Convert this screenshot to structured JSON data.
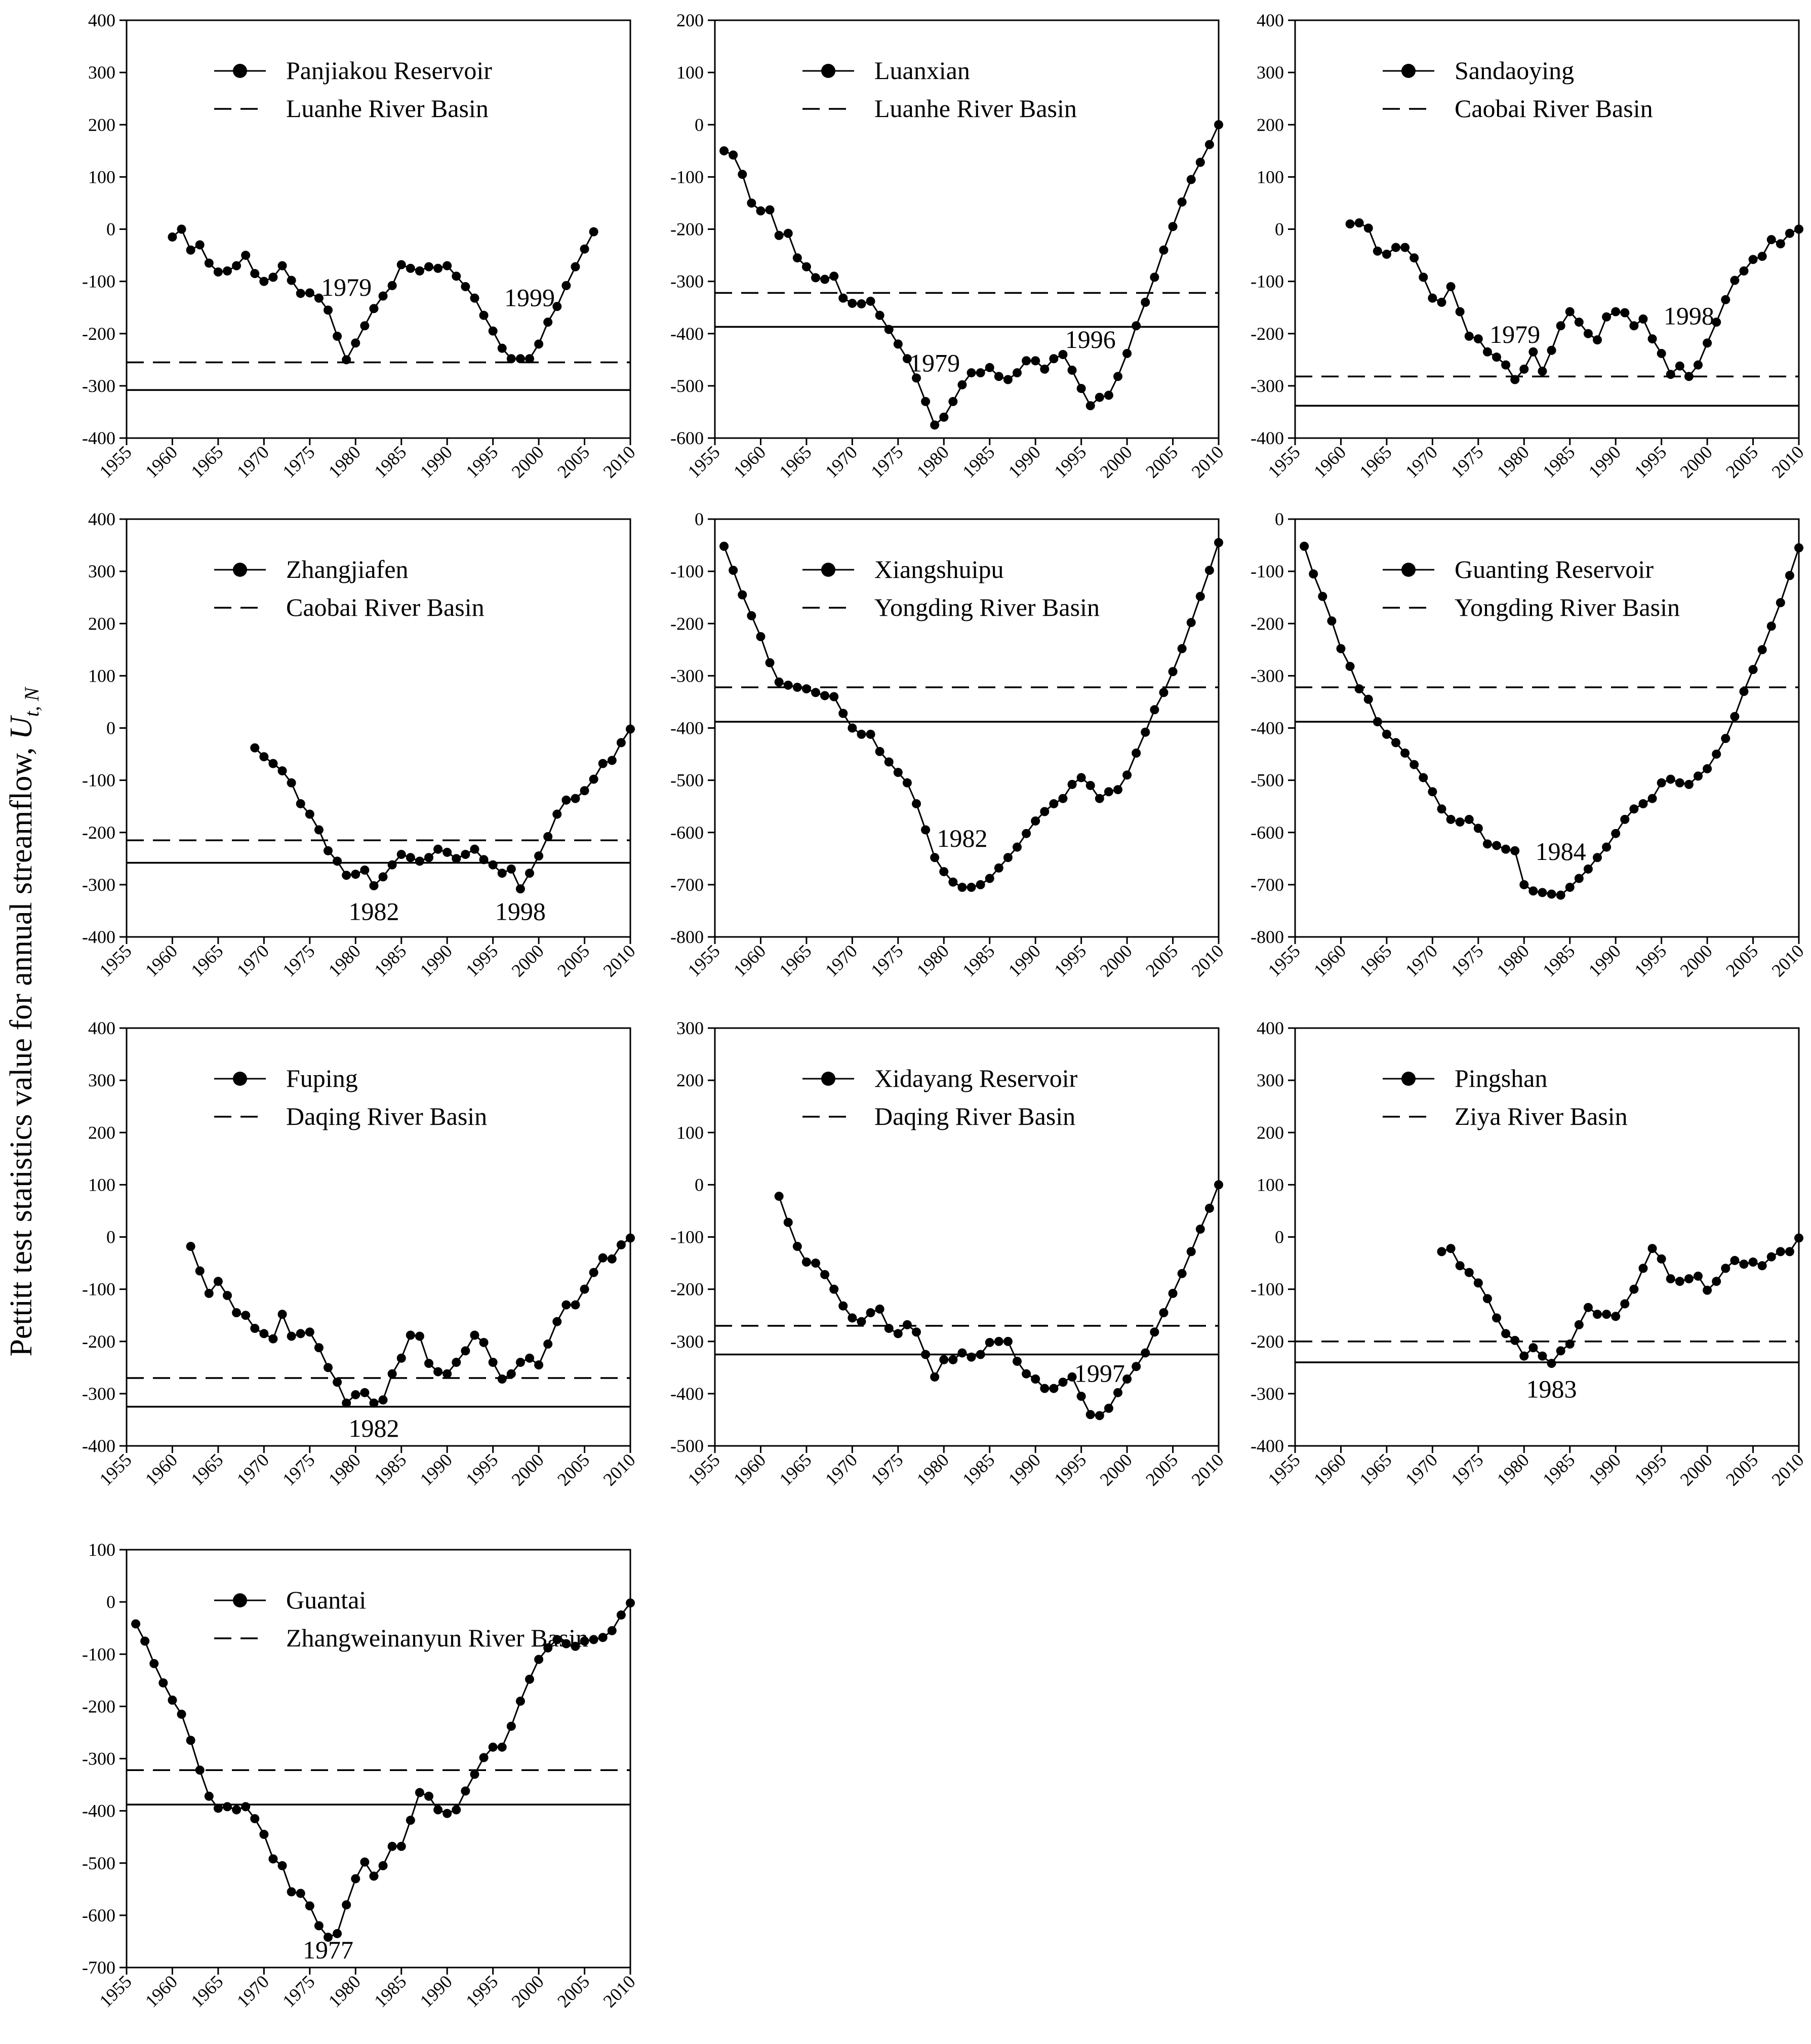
{
  "figure": {
    "ylabel": "Pettitt test statistics value for annual streamflow,",
    "ylabel_symbol": "U",
    "ylabel_subscript": "t, N"
  },
  "chart_data": [
    {
      "type": "line",
      "station": "Panjiakou Reservoir",
      "basin": "Luanhe River Basin",
      "xlim": [
        1955,
        2010
      ],
      "ylim": [
        -400,
        400
      ],
      "ystep": 100,
      "dashed_threshold": -255,
      "solid_threshold": -308,
      "annotations": [
        {
          "text": "1979",
          "x": 1979,
          "y": -110
        },
        {
          "text": "1999",
          "x": 1999,
          "y": -130
        }
      ],
      "x": [
        1960,
        1961,
        1962,
        1963,
        1964,
        1965,
        1966,
        1967,
        1968,
        1969,
        1970,
        1971,
        1972,
        1973,
        1974,
        1975,
        1976,
        1977,
        1978,
        1979,
        1980,
        1981,
        1982,
        1983,
        1984,
        1985,
        1986,
        1987,
        1988,
        1989,
        1990,
        1991,
        1992,
        1993,
        1994,
        1995,
        1996,
        1997,
        1998,
        1999,
        2000,
        2001,
        2002,
        2003,
        2004,
        2005,
        2006
      ],
      "y": [
        -15,
        0,
        -40,
        -30,
        -65,
        -82,
        -80,
        -70,
        -50,
        -85,
        -100,
        -92,
        -70,
        -98,
        -123,
        -122,
        -132,
        -155,
        -205,
        -250,
        -218,
        -185,
        -152,
        -128,
        -108,
        -68,
        -75,
        -80,
        -72,
        -75,
        -70,
        -90,
        -110,
        -132,
        -165,
        -195,
        -228,
        -248,
        -248,
        -248,
        -220,
        -178,
        -148,
        -108,
        -72,
        -38,
        -5
      ]
    },
    {
      "type": "line",
      "station": "Luanxian",
      "basin": "Luanhe River Basin",
      "xlim": [
        1955,
        2010
      ],
      "ylim": [
        -600,
        200
      ],
      "ystep": 100,
      "dashed_threshold": -322,
      "solid_threshold": -387,
      "annotations": [
        {
          "text": "1979",
          "x": 1979,
          "y": -455
        },
        {
          "text": "1996",
          "x": 1996,
          "y": -410
        }
      ],
      "x": [
        1956,
        1957,
        1958,
        1959,
        1960,
        1961,
        1962,
        1963,
        1964,
        1965,
        1966,
        1967,
        1968,
        1969,
        1970,
        1971,
        1972,
        1973,
        1974,
        1975,
        1976,
        1977,
        1978,
        1979,
        1980,
        1981,
        1982,
        1983,
        1984,
        1985,
        1986,
        1987,
        1988,
        1989,
        1990,
        1991,
        1992,
        1993,
        1994,
        1995,
        1996,
        1997,
        1998,
        1999,
        2000,
        2001,
        2002,
        2003,
        2004,
        2005,
        2006,
        2007,
        2008,
        2009,
        2010
      ],
      "y": [
        -50,
        -58,
        -95,
        -150,
        -165,
        -163,
        -212,
        -208,
        -255,
        -272,
        -293,
        -296,
        -290,
        -332,
        -342,
        -343,
        -338,
        -365,
        -392,
        -420,
        -448,
        -485,
        -530,
        -575,
        -560,
        -530,
        -498,
        -475,
        -475,
        -465,
        -482,
        -488,
        -475,
        -452,
        -452,
        -468,
        -448,
        -440,
        -470,
        -505,
        -538,
        -522,
        -518,
        -482,
        -438,
        -385,
        -340,
        -292,
        -240,
        -195,
        -148,
        -105,
        -72,
        -38,
        0
      ]
    },
    {
      "type": "line",
      "station": "Sandaoying",
      "basin": "Caobai River Basin",
      "xlim": [
        1955,
        2010
      ],
      "ylim": [
        -400,
        400
      ],
      "ystep": 100,
      "dashed_threshold": -282,
      "solid_threshold": -338,
      "annotations": [
        {
          "text": "1979",
          "x": 1979,
          "y": -200
        },
        {
          "text": "1998",
          "x": 1998,
          "y": -165
        }
      ],
      "x": [
        1961,
        1962,
        1963,
        1964,
        1965,
        1966,
        1967,
        1968,
        1969,
        1970,
        1971,
        1972,
        1973,
        1974,
        1975,
        1976,
        1977,
        1978,
        1979,
        1980,
        1981,
        1982,
        1983,
        1984,
        1985,
        1986,
        1987,
        1988,
        1989,
        1990,
        1991,
        1992,
        1993,
        1994,
        1995,
        1996,
        1997,
        1998,
        1999,
        2000,
        2001,
        2002,
        2003,
        2004,
        2005,
        2006,
        2007,
        2008,
        2009,
        2010
      ],
      "y": [
        10,
        12,
        2,
        -42,
        -48,
        -35,
        -35,
        -55,
        -92,
        -132,
        -140,
        -110,
        -158,
        -205,
        -210,
        -235,
        -245,
        -260,
        -288,
        -268,
        -235,
        -272,
        -232,
        -185,
        -158,
        -178,
        -200,
        -212,
        -168,
        -158,
        -160,
        -185,
        -172,
        -210,
        -238,
        -278,
        -262,
        -282,
        -260,
        -218,
        -178,
        -135,
        -98,
        -80,
        -58,
        -52,
        -20,
        -28,
        -8,
        0
      ]
    },
    {
      "type": "line",
      "station": "Zhangjiafen",
      "basin": "Caobai River Basin",
      "xlim": [
        1955,
        2010
      ],
      "ylim": [
        -400,
        400
      ],
      "ystep": 100,
      "dashed_threshold": -215,
      "solid_threshold": -258,
      "annotations": [
        {
          "text": "1982",
          "x": 1982,
          "y": -350
        },
        {
          "text": "1998",
          "x": 1998,
          "y": -350
        }
      ],
      "x": [
        1969,
        1970,
        1971,
        1972,
        1973,
        1974,
        1975,
        1976,
        1977,
        1978,
        1979,
        1980,
        1981,
        1982,
        1983,
        1984,
        1985,
        1986,
        1987,
        1988,
        1989,
        1990,
        1991,
        1992,
        1993,
        1994,
        1995,
        1996,
        1997,
        1998,
        1999,
        2000,
        2001,
        2002,
        2003,
        2004,
        2005,
        2006,
        2007,
        2008,
        2009,
        2010
      ],
      "y": [
        -38,
        -55,
        -68,
        -82,
        -105,
        -145,
        -165,
        -195,
        -235,
        -255,
        -282,
        -280,
        -272,
        -302,
        -285,
        -262,
        -242,
        -248,
        -255,
        -248,
        -232,
        -238,
        -250,
        -242,
        -232,
        -252,
        -262,
        -278,
        -270,
        -308,
        -278,
        -245,
        -208,
        -165,
        -138,
        -135,
        -120,
        -98,
        -68,
        -62,
        -28,
        -2
      ]
    },
    {
      "type": "line",
      "station": "Xiangshuipu",
      "basin": "Yongding River Basin",
      "xlim": [
        1955,
        2010
      ],
      "ylim": [
        -800,
        0
      ],
      "ystep": 100,
      "dashed_threshold": -322,
      "solid_threshold": -388,
      "annotations": [
        {
          "text": "1982",
          "x": 1982,
          "y": -610
        }
      ],
      "x": [
        1956,
        1957,
        1958,
        1959,
        1960,
        1961,
        1962,
        1963,
        1964,
        1965,
        1966,
        1967,
        1968,
        1969,
        1970,
        1971,
        1972,
        1973,
        1974,
        1975,
        1976,
        1977,
        1978,
        1979,
        1980,
        1981,
        1982,
        1983,
        1984,
        1985,
        1986,
        1987,
        1988,
        1989,
        1990,
        1991,
        1992,
        1993,
        1994,
        1995,
        1996,
        1997,
        1998,
        1999,
        2000,
        2001,
        2002,
        2003,
        2004,
        2005,
        2006,
        2007,
        2008,
        2009,
        2010
      ],
      "y": [
        -52,
        -98,
        -145,
        -185,
        -225,
        -275,
        -312,
        -318,
        -322,
        -325,
        -332,
        -338,
        -340,
        -372,
        -400,
        -412,
        -412,
        -445,
        -465,
        -485,
        -505,
        -545,
        -595,
        -648,
        -675,
        -695,
        -705,
        -705,
        -700,
        -688,
        -668,
        -648,
        -628,
        -602,
        -578,
        -560,
        -545,
        -535,
        -508,
        -495,
        -510,
        -535,
        -522,
        -518,
        -490,
        -448,
        -408,
        -365,
        -332,
        -292,
        -248,
        -198,
        -148,
        -98,
        -45
      ]
    },
    {
      "type": "line",
      "station": "Guanting Reservoir",
      "basin": "Yongding River Basin",
      "xlim": [
        1955,
        2010
      ],
      "ylim": [
        -800,
        0
      ],
      "ystep": 100,
      "dashed_threshold": -322,
      "solid_threshold": -388,
      "annotations": [
        {
          "text": "1984",
          "x": 1984,
          "y": -635
        }
      ],
      "x": [
        1956,
        1957,
        1958,
        1959,
        1960,
        1961,
        1962,
        1963,
        1964,
        1965,
        1966,
        1967,
        1968,
        1969,
        1970,
        1971,
        1972,
        1973,
        1974,
        1975,
        1976,
        1977,
        1978,
        1979,
        1980,
        1981,
        1982,
        1983,
        1984,
        1985,
        1986,
        1987,
        1988,
        1989,
        1990,
        1991,
        1992,
        1993,
        1994,
        1995,
        1996,
        1997,
        1998,
        1999,
        2000,
        2001,
        2002,
        2003,
        2004,
        2005,
        2006,
        2007,
        2008,
        2009,
        2010
      ],
      "y": [
        -52,
        -105,
        -148,
        -195,
        -248,
        -282,
        -325,
        -345,
        -388,
        -412,
        -428,
        -448,
        -470,
        -495,
        -522,
        -555,
        -575,
        -580,
        -575,
        -592,
        -622,
        -625,
        -632,
        -635,
        -700,
        -712,
        -715,
        -718,
        -720,
        -705,
        -688,
        -670,
        -648,
        -628,
        -602,
        -575,
        -555,
        -545,
        -535,
        -505,
        -498,
        -505,
        -508,
        -492,
        -478,
        -450,
        -420,
        -378,
        -330,
        -288,
        -250,
        -205,
        -160,
        -108,
        -55
      ]
    },
    {
      "type": "line",
      "station": "Fuping",
      "basin": "Daqing River Basin",
      "xlim": [
        1955,
        2010
      ],
      "ylim": [
        -400,
        400
      ],
      "ystep": 100,
      "dashed_threshold": -270,
      "solid_threshold": -325,
      "annotations": [
        {
          "text": "1982",
          "x": 1982,
          "y": -365
        }
      ],
      "x": [
        1962,
        1963,
        1964,
        1965,
        1966,
        1967,
        1968,
        1969,
        1970,
        1971,
        1972,
        1973,
        1974,
        1975,
        1976,
        1977,
        1978,
        1979,
        1980,
        1981,
        1982,
        1983,
        1984,
        1985,
        1986,
        1987,
        1988,
        1989,
        1990,
        1991,
        1992,
        1993,
        1994,
        1995,
        1996,
        1997,
        1998,
        1999,
        2000,
        2001,
        2002,
        2003,
        2004,
        2005,
        2006,
        2007,
        2008,
        2009,
        2010
      ],
      "y": [
        -18,
        -65,
        -108,
        -85,
        -112,
        -145,
        -150,
        -175,
        -185,
        -195,
        -148,
        -190,
        -185,
        -182,
        -212,
        -250,
        -278,
        -318,
        -302,
        -298,
        -318,
        -312,
        -262,
        -232,
        -188,
        -190,
        -242,
        -258,
        -262,
        -240,
        -218,
        -188,
        -202,
        -240,
        -272,
        -262,
        -240,
        -232,
        -245,
        -205,
        -162,
        -130,
        -130,
        -100,
        -68,
        -40,
        -42,
        -15,
        -2
      ]
    },
    {
      "type": "line",
      "station": "Xidayang Reservoir",
      "basin": "Daqing River Basin",
      "xlim": [
        1955,
        2010
      ],
      "ylim": [
        -500,
        300
      ],
      "ystep": 100,
      "dashed_threshold": -270,
      "solid_threshold": -325,
      "annotations": [
        {
          "text": "1997",
          "x": 1997,
          "y": -360
        }
      ],
      "x": [
        1962,
        1963,
        1964,
        1965,
        1966,
        1967,
        1968,
        1969,
        1970,
        1971,
        1972,
        1973,
        1974,
        1975,
        1976,
        1977,
        1978,
        1979,
        1980,
        1981,
        1982,
        1983,
        1984,
        1985,
        1986,
        1987,
        1988,
        1989,
        1990,
        1991,
        1992,
        1993,
        1994,
        1995,
        1996,
        1997,
        1998,
        1999,
        2000,
        2001,
        2002,
        2003,
        2004,
        2005,
        2006,
        2007,
        2008,
        2009,
        2010
      ],
      "y": [
        -22,
        -72,
        -118,
        -148,
        -150,
        -172,
        -200,
        -232,
        -255,
        -262,
        -245,
        -238,
        -275,
        -285,
        -268,
        -282,
        -325,
        -368,
        -335,
        -335,
        -322,
        -330,
        -325,
        -302,
        -300,
        -300,
        -338,
        -362,
        -372,
        -390,
        -390,
        -378,
        -368,
        -405,
        -440,
        -442,
        -428,
        -398,
        -372,
        -348,
        -322,
        -282,
        -245,
        -208,
        -170,
        -128,
        -85,
        -45,
        0
      ]
    },
    {
      "type": "line",
      "station": "Pingshan",
      "basin": "Ziya River Basin",
      "xlim": [
        1955,
        2010
      ],
      "ylim": [
        -400,
        400
      ],
      "ystep": 100,
      "dashed_threshold": -200,
      "solid_threshold": -240,
      "annotations": [
        {
          "text": "1983",
          "x": 1983,
          "y": -290
        }
      ],
      "x": [
        1971,
        1972,
        1973,
        1974,
        1975,
        1976,
        1977,
        1978,
        1979,
        1980,
        1981,
        1982,
        1983,
        1984,
        1985,
        1986,
        1987,
        1988,
        1989,
        1990,
        1991,
        1992,
        1993,
        1994,
        1995,
        1996,
        1997,
        1998,
        1999,
        2000,
        2001,
        2002,
        2003,
        2004,
        2005,
        2006,
        2007,
        2008,
        2009,
        2010
      ],
      "y": [
        -28,
        -22,
        -55,
        -68,
        -88,
        -118,
        -155,
        -185,
        -198,
        -228,
        -212,
        -228,
        -242,
        -218,
        -205,
        -168,
        -135,
        -148,
        -148,
        -152,
        -128,
        -100,
        -60,
        -22,
        -42,
        -80,
        -85,
        -80,
        -75,
        -102,
        -85,
        -60,
        -45,
        -52,
        -48,
        -55,
        -38,
        -28,
        -28,
        -2
      ]
    },
    {
      "type": "line",
      "station": "Guantai",
      "basin": "Zhangweinanyun River Basin",
      "xlim": [
        1955,
        2010
      ],
      "ylim": [
        -700,
        100
      ],
      "ystep": 100,
      "dashed_threshold": -322,
      "solid_threshold": -388,
      "annotations": [
        {
          "text": "1977",
          "x": 1977,
          "y": -665
        }
      ],
      "x": [
        1956,
        1957,
        1958,
        1959,
        1960,
        1961,
        1962,
        1963,
        1964,
        1965,
        1966,
        1967,
        1968,
        1969,
        1970,
        1971,
        1972,
        1973,
        1974,
        1975,
        1976,
        1977,
        1978,
        1979,
        1980,
        1981,
        1982,
        1983,
        1984,
        1985,
        1986,
        1987,
        1988,
        1989,
        1990,
        1991,
        1992,
        1993,
        1994,
        1995,
        1996,
        1997,
        1998,
        1999,
        2000,
        2001,
        2002,
        2003,
        2004,
        2005,
        2006,
        2007,
        2008,
        2009,
        2010
      ],
      "y": [
        -42,
        -75,
        -118,
        -155,
        -188,
        -215,
        -265,
        -322,
        -372,
        -395,
        -392,
        -398,
        -392,
        -415,
        -445,
        -492,
        -505,
        -555,
        -558,
        -582,
        -620,
        -642,
        -635,
        -580,
        -530,
        -498,
        -525,
        -505,
        -468,
        -468,
        -418,
        -365,
        -372,
        -398,
        -405,
        -398,
        -362,
        -330,
        -298,
        -278,
        -278,
        -238,
        -190,
        -148,
        -110,
        -88,
        -72,
        -80,
        -85,
        -75,
        -72,
        -68,
        -55,
        -25,
        -2
      ]
    }
  ]
}
